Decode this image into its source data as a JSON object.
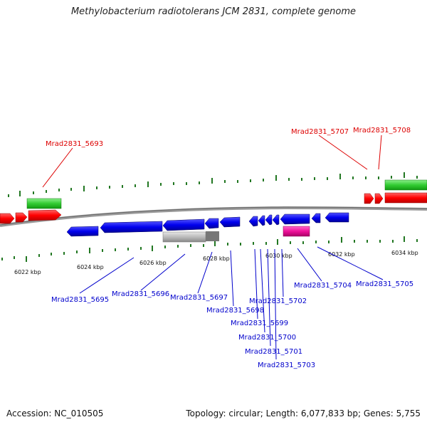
{
  "title": "Methylobacterium radiotolerans JCM 2831, complete genome",
  "footer": {
    "accession": "Accession: NC_010505",
    "summary": "Topology: circular; Length: 6,077,833 bp; Genes: 5,755"
  },
  "scale_labels": [
    "6022 kbp",
    "6024 kbp",
    "6026 kbp",
    "6028 kbp",
    "6030 kbp",
    "6032 kbp",
    "6034 kbp"
  ],
  "gene_labels_top": [
    "Mrad2831_5693",
    "Mrad2831_5707",
    "Mrad2831_5708"
  ],
  "gene_labels_bottom": [
    "Mrad2831_5695",
    "Mrad2831_5696",
    "Mrad2831_5697",
    "Mrad2831_5698",
    "Mrad2831_5702",
    "Mrad2831_5699",
    "Mrad2831_5700",
    "Mrad2831_5701",
    "Mrad2831_5703",
    "Mrad2831_5704",
    "Mrad2831_5705"
  ],
  "colors": {
    "forward_gene": "#ff0000",
    "reverse_gene": "#0000ee",
    "rrna": "#33cc33",
    "trna_like": "#ee1199",
    "pseudo": "#b0b0b0",
    "backbone": "#808080",
    "tick": "#227722"
  }
}
